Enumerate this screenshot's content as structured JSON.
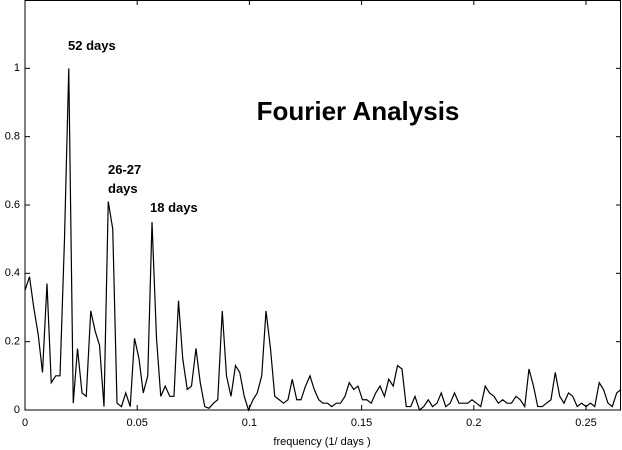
{
  "chart_data": {
    "type": "line",
    "title": "Fourier Analysis",
    "x_label": "frequency (1/ days )",
    "annotations": [
      "52 days",
      "26-27 days",
      "18 days"
    ],
    "xlim": [
      0,
      0.2656
    ],
    "xticks": [
      0,
      0.05,
      0.1,
      0.15,
      0.2,
      0.25
    ],
    "ylim": [
      0,
      1.2
    ],
    "yticks": [
      0,
      0.2,
      0.4,
      0.6,
      0.8,
      1
    ],
    "grid": false,
    "x": [
      0,
      0.002,
      0.0039,
      0.0059,
      0.0078,
      0.0098,
      0.0117,
      0.0137,
      0.0156,
      0.0176,
      0.0195,
      0.0215,
      0.0234,
      0.0254,
      0.0273,
      0.0293,
      0.0313,
      0.0332,
      0.0352,
      0.0371,
      0.0391,
      0.041,
      0.043,
      0.0449,
      0.0469,
      0.0488,
      0.0508,
      0.0527,
      0.0547,
      0.0566,
      0.0586,
      0.0605,
      0.0625,
      0.0645,
      0.0664,
      0.0684,
      0.0703,
      0.0723,
      0.0742,
      0.0762,
      0.0781,
      0.0801,
      0.082,
      0.084,
      0.0859,
      0.0879,
      0.0898,
      0.0918,
      0.0938,
      0.0957,
      0.0977,
      0.0996,
      0.1016,
      0.1035,
      0.1055,
      0.1074,
      0.1094,
      0.1113,
      0.1133,
      0.1152,
      0.1172,
      0.1191,
      0.1211,
      0.123,
      0.125,
      0.127,
      0.1289,
      0.1309,
      0.1328,
      0.1348,
      0.1367,
      0.1387,
      0.1406,
      0.1426,
      0.1445,
      0.1465,
      0.1484,
      0.1504,
      0.1523,
      0.1543,
      0.1563,
      0.1582,
      0.1602,
      0.1621,
      0.1641,
      0.166,
      0.168,
      0.1699,
      0.1719,
      0.1738,
      0.1758,
      0.1777,
      0.1797,
      0.1816,
      0.1836,
      0.1855,
      0.1875,
      0.1895,
      0.1914,
      0.1934,
      0.1953,
      0.1973,
      0.1992,
      0.2012,
      0.2031,
      0.2051,
      0.207,
      0.209,
      0.2109,
      0.2129,
      0.2148,
      0.2168,
      0.2188,
      0.2207,
      0.2227,
      0.2246,
      0.2266,
      0.2285,
      0.2305,
      0.2324,
      0.2344,
      0.2363,
      0.2383,
      0.2402,
      0.2422,
      0.2441,
      0.2461,
      0.248,
      0.25,
      0.252,
      0.2539,
      0.2559,
      0.2578,
      0.2598,
      0.2617,
      0.2637,
      0.2656
    ],
    "series": [
      {
        "color": "#000000",
        "values": [
          0.35,
          0.39,
          0.3,
          0.22,
          0.11,
          0.37,
          0.08,
          0.1,
          0.1,
          0.5,
          1.0,
          0.02,
          0.18,
          0.05,
          0.04,
          0.29,
          0.23,
          0.19,
          0.01,
          0.61,
          0.53,
          0.02,
          0.01,
          0.05,
          0.01,
          0.21,
          0.15,
          0.05,
          0.1,
          0.55,
          0.21,
          0.04,
          0.07,
          0.04,
          0.04,
          0.32,
          0.15,
          0.06,
          0.07,
          0.18,
          0.08,
          0.01,
          0.005,
          0.02,
          0.03,
          0.29,
          0.1,
          0.04,
          0.13,
          0.11,
          0.04,
          0,
          0.03,
          0.05,
          0.1,
          0.29,
          0.18,
          0.04,
          0.03,
          0.02,
          0.03,
          0.09,
          0.03,
          0.03,
          0.07,
          0.1,
          0.06,
          0.03,
          0.02,
          0.02,
          0.01,
          0.02,
          0.02,
          0.04,
          0.08,
          0.06,
          0.07,
          0.03,
          0.03,
          0.02,
          0.05,
          0.07,
          0.04,
          0.09,
          0.07,
          0.13,
          0.12,
          0.01,
          0.01,
          0.04,
          0,
          0.01,
          0.03,
          0.01,
          0.02,
          0.05,
          0.01,
          0.02,
          0.05,
          0.02,
          0.02,
          0.02,
          0.03,
          0.02,
          0.01,
          0.07,
          0.05,
          0.04,
          0.02,
          0.03,
          0.02,
          0.02,
          0.04,
          0.03,
          0.01,
          0.12,
          0.07,
          0.01,
          0.01,
          0.02,
          0.03,
          0.11,
          0.04,
          0.02,
          0.05,
          0.04,
          0.01,
          0.02,
          0.01,
          0.02,
          0.01,
          0.08,
          0.06,
          0.02,
          0.01,
          0.05,
          0.06
        ]
      }
    ]
  }
}
